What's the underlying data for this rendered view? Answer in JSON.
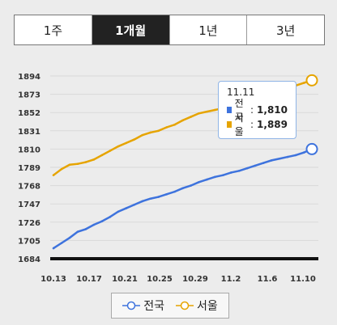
{
  "tabs": [
    {
      "label": "1주",
      "active": false
    },
    {
      "label": "1개월",
      "active": true
    },
    {
      "label": "1년",
      "active": false
    },
    {
      "label": "3년",
      "active": false
    }
  ],
  "colors": {
    "national": "#3e73dd",
    "seoul": "#e6a400"
  },
  "tooltip": {
    "date": "11.11",
    "rows": [
      {
        "name": "전국",
        "value": "1,810"
      },
      {
        "name": "서울",
        "value": "1,889"
      }
    ]
  },
  "legend": [
    {
      "name": "전국"
    },
    {
      "name": "서울"
    }
  ],
  "chart_data": {
    "type": "line",
    "x_ticks": [
      "10.13",
      "10.17",
      "10.21",
      "10.25",
      "10.29",
      "11.2",
      "11.6",
      "11.10"
    ],
    "y_ticks": [
      1684,
      1705,
      1726,
      1747,
      1768,
      1789,
      1810,
      1831,
      1852,
      1873,
      1894
    ],
    "ylim": [
      1684,
      1894
    ],
    "series": [
      {
        "name": "전국",
        "values": [
          1696,
          1702,
          1708,
          1715,
          1718,
          1723,
          1727,
          1732,
          1738,
          1742,
          1746,
          1750,
          1753,
          1755,
          1758,
          1761,
          1765,
          1768,
          1772,
          1775,
          1778,
          1780,
          1783,
          1785,
          1788,
          1791,
          1794,
          1797,
          1799,
          1801,
          1803,
          1806,
          1810
        ]
      },
      {
        "name": "서울",
        "values": [
          1780,
          1787,
          1792,
          1793,
          1795,
          1798,
          1803,
          1808,
          1813,
          1817,
          1821,
          1826,
          1829,
          1831,
          1835,
          1838,
          1843,
          1847,
          1851,
          1853,
          1855,
          1857,
          1860,
          1863,
          1866,
          1869,
          1872,
          1874,
          1877,
          1880,
          1883,
          1886,
          1889
        ]
      }
    ]
  }
}
